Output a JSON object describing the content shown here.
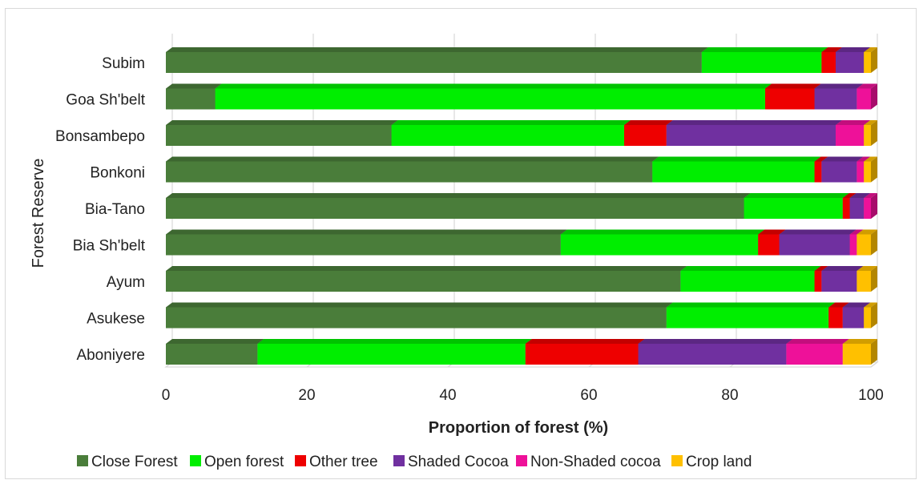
{
  "chart_data": {
    "type": "bar",
    "orientation": "horizontal",
    "stacked": true,
    "style": "3d",
    "title": "",
    "xlabel": "Proportion of forest (%)",
    "ylabel": "Forest Reserve",
    "xlim": [
      0,
      100
    ],
    "xticks": [
      0,
      20,
      40,
      60,
      80,
      100
    ],
    "grid": true,
    "legend_position": "bottom",
    "categories": [
      "Subim",
      "Goa Sh'belt",
      "Bonsambepo",
      "Bonkoni",
      "Bia-Tano",
      "Bia Sh'belt",
      "Ayum",
      "Asukese",
      "Aboniyere"
    ],
    "series": [
      {
        "name": "Close Forest",
        "color": "#4a7d3a",
        "values": [
          76,
          7,
          32,
          69,
          82,
          56,
          73,
          71,
          13
        ]
      },
      {
        "name": "Open forest",
        "color": "#00ee00",
        "values": [
          17,
          78,
          33,
          23,
          14,
          28,
          19,
          23,
          38
        ]
      },
      {
        "name": "Other tree",
        "color": "#ee0000",
        "values": [
          2,
          7,
          6,
          1,
          1,
          3,
          1,
          2,
          16
        ]
      },
      {
        "name": "Shaded Cocoa",
        "color": "#7030a0",
        "values": [
          4,
          6,
          24,
          5,
          2,
          10,
          5,
          3,
          21
        ]
      },
      {
        "name": "Non-Shaded cocoa",
        "color": "#ee1199",
        "values": [
          0,
          2,
          4,
          1,
          1,
          1,
          0,
          0,
          8
        ]
      },
      {
        "name": "Crop land",
        "color": "#ffc000",
        "values": [
          1,
          0,
          1,
          1,
          0,
          2,
          2,
          1,
          4
        ]
      }
    ]
  }
}
